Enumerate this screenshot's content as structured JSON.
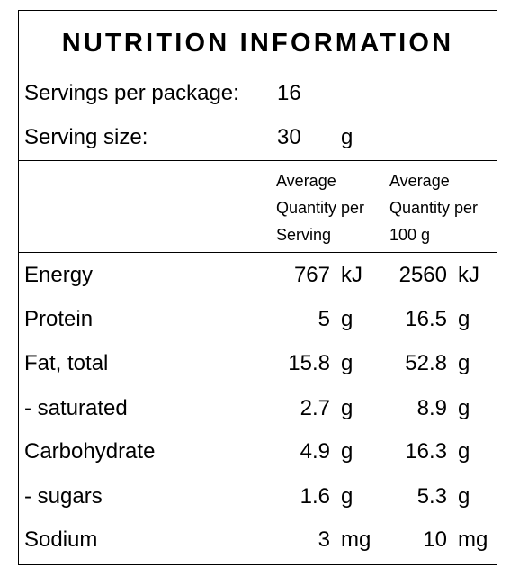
{
  "panel": {
    "title": "NUTRITION INFORMATION",
    "servings_label": "Servings per package:",
    "servings_value": "16",
    "serving_size_label": "Serving size:",
    "serving_size_value": "30",
    "serving_size_unit": "g"
  },
  "table": {
    "col_per_serving": [
      "Average",
      "Quantity per",
      "Serving"
    ],
    "col_per_100g": [
      "Average",
      "Quantity per",
      "100 g"
    ],
    "rows": [
      {
        "label": "Energy",
        "per_serving": "767",
        "per_serving_unit": "kJ",
        "per_100g": "2560",
        "per_100g_unit": "kJ"
      },
      {
        "label": "Protein",
        "per_serving": "5",
        "per_serving_unit": "g",
        "per_100g": "16.5",
        "per_100g_unit": "g"
      },
      {
        "label": "Fat, total",
        "per_serving": "15.8",
        "per_serving_unit": "g",
        "per_100g": "52.8",
        "per_100g_unit": "g"
      },
      {
        "label": "- saturated",
        "per_serving": "2.7",
        "per_serving_unit": "g",
        "per_100g": "8.9",
        "per_100g_unit": "g"
      },
      {
        "label": "Carbohydrate",
        "per_serving": "4.9",
        "per_serving_unit": "g",
        "per_100g": "16.3",
        "per_100g_unit": "g"
      },
      {
        "label": "- sugars",
        "per_serving": "1.6",
        "per_serving_unit": "g",
        "per_100g": "5.3",
        "per_100g_unit": "g"
      },
      {
        "label": "Sodium",
        "per_serving": "3",
        "per_serving_unit": "mg",
        "per_100g": "10",
        "per_100g_unit": "mg"
      }
    ]
  }
}
